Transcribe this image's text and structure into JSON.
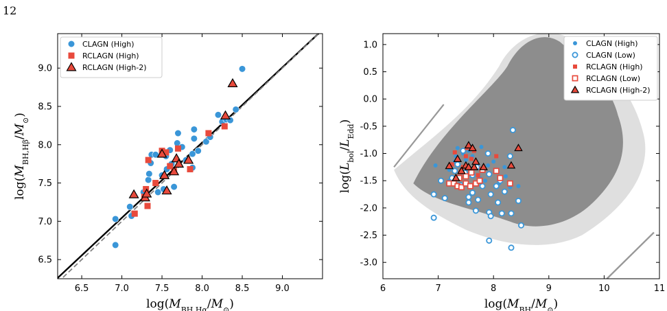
{
  "page": {
    "number": "12"
  },
  "colors": {
    "blue": "#3a96d8",
    "red": "#e84a3c",
    "gray": "#7f7f7f",
    "dash": "#808080"
  },
  "chart_data": [
    {
      "type": "scatter",
      "xlabel": "log(M_BH,Hα/M_⊙)",
      "ylabel": "log(M_BH,Hβ/M_⊙)",
      "xlim": [
        6.2,
        9.5
      ],
      "ylim": [
        6.25,
        9.45
      ],
      "xticks": [
        "6.5",
        "7.0",
        "7.5",
        "8.0",
        "8.5",
        "9.0"
      ],
      "yticks": [
        "6.5",
        "7.0",
        "7.5",
        "8.0",
        "8.5",
        "9.0"
      ],
      "legend_position": "upper-left",
      "lines": [
        {
          "style": "solid",
          "color": "#000000",
          "points": [
            [
              6.2,
              6.26
            ],
            [
              9.5,
              9.5
            ]
          ]
        },
        {
          "style": "dashed",
          "color": "#808080",
          "points": [
            [
              6.2,
              6.2
            ],
            [
              9.5,
              9.5
            ]
          ]
        }
      ],
      "series": [
        {
          "name": "CLAGN (High)",
          "marker": "circle",
          "color": "#3a96d8",
          "points": [
            [
              6.92,
              7.03
            ],
            [
              6.92,
              6.69
            ],
            [
              7.1,
              7.19
            ],
            [
              7.12,
              7.07
            ],
            [
              7.27,
              7.38
            ],
            [
              7.3,
              7.42
            ],
            [
              7.33,
              7.54
            ],
            [
              7.34,
              7.62
            ],
            [
              7.36,
              7.76
            ],
            [
              7.37,
              7.87
            ],
            [
              7.42,
              7.87
            ],
            [
              7.45,
              7.38
            ],
            [
              7.5,
              7.6
            ],
            [
              7.52,
              7.42
            ],
            [
              7.56,
              7.68
            ],
            [
              7.55,
              7.85
            ],
            [
              7.6,
              7.93
            ],
            [
              7.62,
              7.75
            ],
            [
              7.65,
              7.45
            ],
            [
              7.69,
              8.02
            ],
            [
              7.7,
              8.15
            ],
            [
              7.75,
              7.97
            ],
            [
              7.8,
              7.8
            ],
            [
              7.88,
              7.7
            ],
            [
              7.88,
              7.88
            ],
            [
              7.9,
              8.08
            ],
            [
              7.9,
              8.2
            ],
            [
              7.95,
              7.92
            ],
            [
              8.05,
              8.04
            ],
            [
              8.1,
              8.1
            ],
            [
              8.2,
              8.39
            ],
            [
              8.25,
              8.3
            ],
            [
              8.3,
              8.33
            ],
            [
              8.35,
              8.32
            ],
            [
              8.42,
              8.46
            ],
            [
              8.5,
              8.99
            ]
          ]
        },
        {
          "name": "RCLAGN (High)",
          "marker": "square",
          "color": "#e84a3c",
          "points": [
            [
              7.16,
              7.1
            ],
            [
              7.28,
              7.32
            ],
            [
              7.3,
              7.42
            ],
            [
              7.32,
              7.2
            ],
            [
              7.33,
              7.8
            ],
            [
              7.42,
              7.5
            ],
            [
              7.5,
              7.92
            ],
            [
              7.55,
              7.9
            ],
            [
              7.6,
              7.72
            ],
            [
              7.65,
              7.67
            ],
            [
              7.7,
              7.95
            ],
            [
              7.85,
              7.68
            ],
            [
              8.08,
              8.15
            ],
            [
              8.28,
              8.24
            ]
          ]
        },
        {
          "name": "RCLAGN (High-2)",
          "marker": "triangle",
          "color": "#e84a3c",
          "points": [
            [
              7.15,
              7.35
            ],
            [
              7.29,
              7.31
            ],
            [
              7.31,
              7.36
            ],
            [
              7.5,
              7.88
            ],
            [
              7.53,
              7.6
            ],
            [
              7.56,
              7.4
            ],
            [
              7.65,
              7.65
            ],
            [
              7.68,
              7.82
            ],
            [
              7.71,
              7.75
            ],
            [
              7.83,
              7.8
            ],
            [
              8.29,
              8.38
            ],
            [
              8.38,
              8.8
            ]
          ]
        }
      ]
    },
    {
      "type": "scatter",
      "xlabel": "log(M_BH/M_⊙)",
      "ylabel": "log(L_bol/L_Edd)",
      "xlim": [
        6,
        11
      ],
      "ylim": [
        -3.3,
        1.2
      ],
      "xticks": [
        "6",
        "7",
        "8",
        "9",
        "10",
        "11"
      ],
      "yticks": [
        "1.0",
        "0.5",
        "0.0",
        "-0.5",
        "-1.0",
        "-1.5",
        "-2.0",
        "-2.5",
        "-3.0"
      ],
      "legend_position": "upper-right",
      "series": [
        {
          "name": "CLAGN (High)",
          "marker": "dot",
          "color": "#3a96d8",
          "points": [
            [
              6.95,
              -1.22
            ],
            [
              7.2,
              -1.3
            ],
            [
              7.3,
              -1.15
            ],
            [
              7.32,
              -1.05
            ],
            [
              7.35,
              -0.9
            ],
            [
              7.45,
              -1.0
            ],
            [
              7.5,
              -1.12
            ],
            [
              7.55,
              -0.95
            ],
            [
              7.6,
              -1.35
            ],
            [
              7.62,
              -1.05
            ],
            [
              7.7,
              -1.2
            ],
            [
              7.78,
              -0.88
            ],
            [
              7.85,
              -1.5
            ],
            [
              7.9,
              -1.22
            ],
            [
              8.0,
              -1.15
            ],
            [
              8.05,
              -1.3
            ],
            [
              8.1,
              -1.55
            ],
            [
              8.2,
              -1.25
            ],
            [
              8.22,
              -1.42
            ],
            [
              8.3,
              -1.62
            ],
            [
              8.45,
              -1.6
            ],
            [
              7.4,
              -1.62
            ],
            [
              7.55,
              -1.6
            ],
            [
              7.2,
              -1.5
            ],
            [
              7.75,
              -1.45
            ]
          ]
        },
        {
          "name": "CLAGN (Low)",
          "marker": "circle-open",
          "color": "#3a96d8",
          "points": [
            [
              6.92,
              -1.75
            ],
            [
              6.92,
              -2.18
            ],
            [
              7.05,
              -1.5
            ],
            [
              7.12,
              -1.82
            ],
            [
              7.25,
              -1.45
            ],
            [
              7.3,
              -1.32
            ],
            [
              7.35,
              -1.2
            ],
            [
              7.4,
              -1.58
            ],
            [
              7.48,
              -1.35
            ],
            [
              7.55,
              -1.8
            ],
            [
              7.55,
              -1.9
            ],
            [
              7.62,
              -1.4
            ],
            [
              7.62,
              -1.72
            ],
            [
              7.68,
              -2.05
            ],
            [
              7.7,
              -1.25
            ],
            [
              7.72,
              -1.85
            ],
            [
              7.8,
              -1.6
            ],
            [
              7.9,
              -1.0
            ],
            [
              7.92,
              -1.38
            ],
            [
              7.95,
              -1.75
            ],
            [
              7.92,
              -2.08
            ],
            [
              7.95,
              -2.15
            ],
            [
              7.92,
              -2.6
            ],
            [
              8.08,
              -1.9
            ],
            [
              8.12,
              -1.5
            ],
            [
              8.15,
              -2.1
            ],
            [
              8.2,
              -1.7
            ],
            [
              8.3,
              -1.05
            ],
            [
              8.32,
              -2.1
            ],
            [
              8.35,
              -0.57
            ],
            [
              8.32,
              -2.73
            ],
            [
              8.45,
              -1.87
            ],
            [
              8.5,
              -2.32
            ],
            [
              8.05,
              -1.6
            ],
            [
              7.45,
              -0.95
            ]
          ]
        },
        {
          "name": "RCLAGN (High)",
          "marker": "square",
          "color": "#e84a3c",
          "points": [
            [
              7.25,
              -1.2
            ],
            [
              7.3,
              -0.98
            ],
            [
              7.4,
              -1.35
            ],
            [
              7.45,
              -1.25
            ],
            [
              7.52,
              -0.9
            ],
            [
              7.6,
              -1.1
            ],
            [
              7.65,
              -0.95
            ],
            [
              7.72,
              -1.4
            ],
            [
              8.05,
              -1.05
            ],
            [
              7.5,
              -1.05
            ]
          ]
        },
        {
          "name": "RCLAGN (Low)",
          "marker": "square-open",
          "color": "#e84a3c",
          "points": [
            [
              7.2,
              -1.55
            ],
            [
              7.28,
              -1.55
            ],
            [
              7.35,
              -1.6
            ],
            [
              7.42,
              -1.62
            ],
            [
              7.5,
              -1.55
            ],
            [
              7.5,
              -1.42
            ],
            [
              7.6,
              -1.35
            ],
            [
              7.68,
              -1.55
            ],
            [
              7.75,
              -1.5
            ],
            [
              7.8,
              -1.3
            ],
            [
              8.05,
              -1.32
            ],
            [
              8.12,
              -1.45
            ],
            [
              8.3,
              -1.55
            ],
            [
              7.38,
              -1.45
            ],
            [
              7.58,
              -1.6
            ]
          ]
        },
        {
          "name": "RCLAGN (High-2)",
          "marker": "triangle",
          "color": "#e84a3c",
          "points": [
            [
              7.2,
              -1.23
            ],
            [
              7.32,
              -1.45
            ],
            [
              7.35,
              -1.1
            ],
            [
              7.42,
              -1.32
            ],
            [
              7.5,
              -1.22
            ],
            [
              7.55,
              -0.85
            ],
            [
              7.55,
              -1.25
            ],
            [
              7.62,
              -0.9
            ],
            [
              7.65,
              -1.25
            ],
            [
              7.68,
              -1.15
            ],
            [
              7.82,
              -1.25
            ],
            [
              8.32,
              -1.22
            ],
            [
              8.45,
              -0.9
            ]
          ]
        }
      ]
    }
  ]
}
